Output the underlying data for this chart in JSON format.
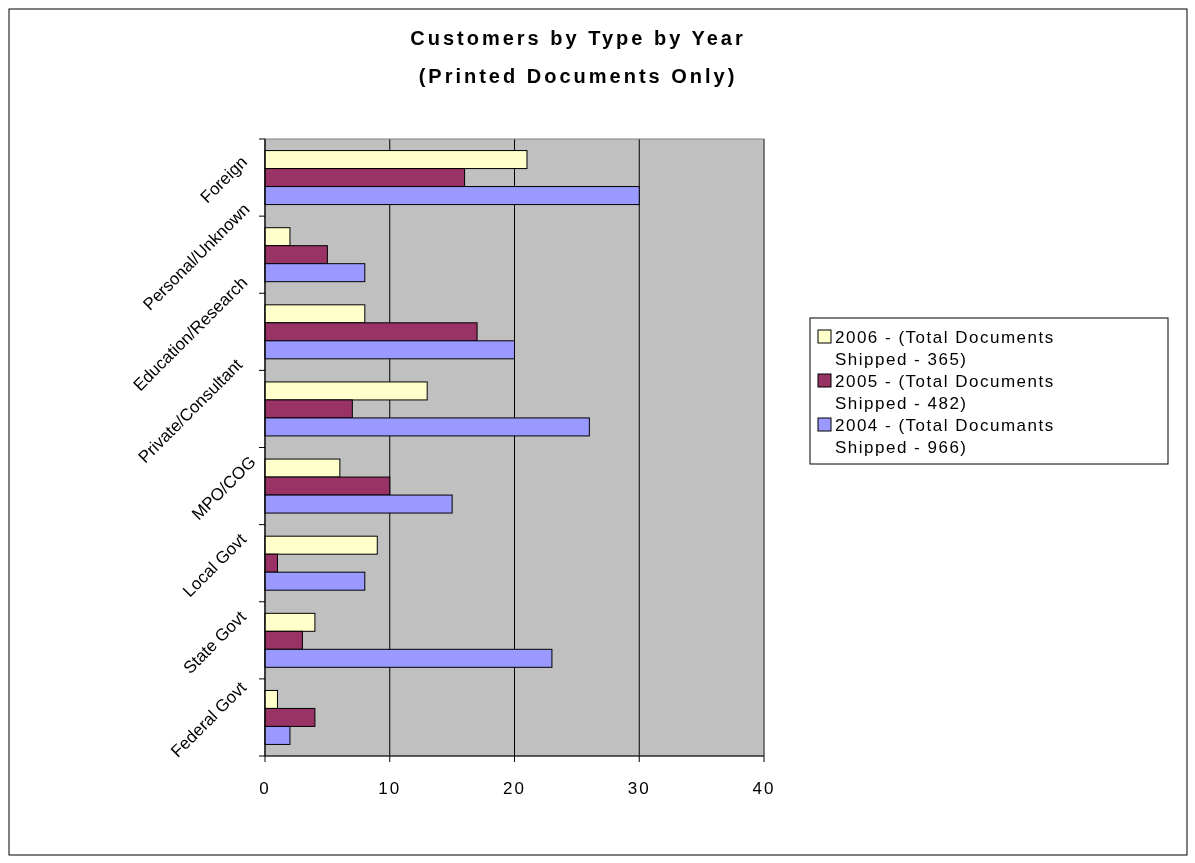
{
  "chart_data": {
    "type": "bar",
    "orientation": "horizontal",
    "title": "Customers by Type by Year",
    "subtitle": "(Printed Documents Only)",
    "categories": [
      "Foreign",
      "Personal/Unknown",
      "Education/Research",
      "Private/Consultant",
      "MPO/COG",
      "Local Govt",
      "State Govt",
      "Federal Govt"
    ],
    "series": [
      {
        "name": "2006 - (Total Documents Shipped - 365)",
        "color": "#ffffcc",
        "values": [
          21,
          2,
          8,
          13,
          6,
          9,
          4,
          1
        ]
      },
      {
        "name": "2005 - (Total Documents Shipped - 482)",
        "color": "#993366",
        "values": [
          16,
          5,
          17,
          7,
          10,
          1,
          3,
          4
        ]
      },
      {
        "name": "2004 - (Total Documants Shipped - 966)",
        "color": "#9999ff",
        "values": [
          30,
          8,
          20,
          26,
          15,
          8,
          23,
          2
        ]
      }
    ],
    "xlim": [
      0,
      40
    ],
    "xticks": [
      0,
      10,
      20,
      30,
      40
    ],
    "grid": "x",
    "legend": "right"
  }
}
